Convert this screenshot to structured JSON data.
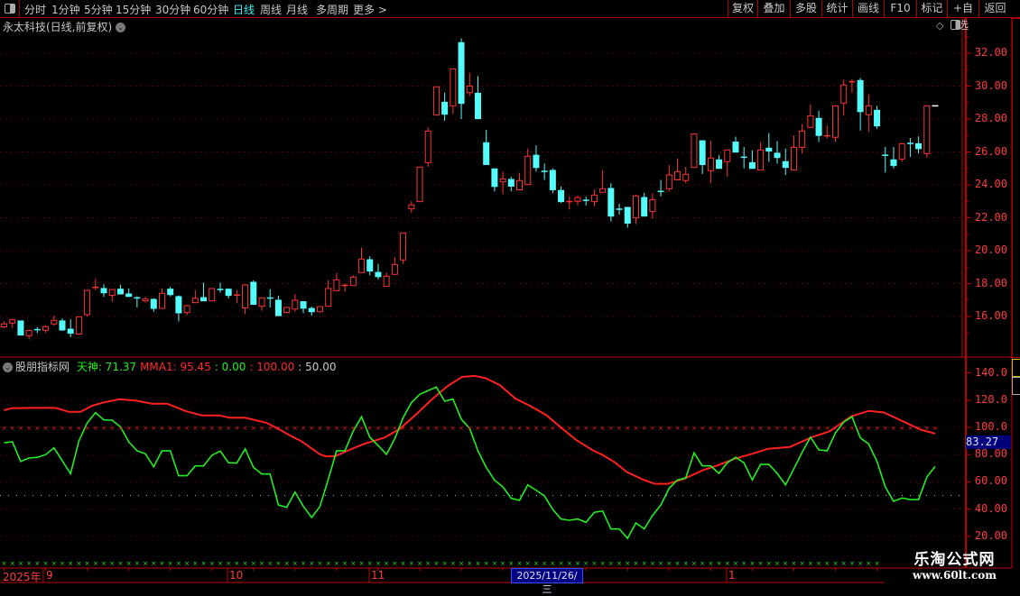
{
  "toolbar": {
    "periods": [
      {
        "label": "分时"
      },
      {
        "label": "1分钟"
      },
      {
        "label": "5分钟"
      },
      {
        "label": "15分钟"
      },
      {
        "label": "30分钟"
      },
      {
        "label": "60分钟"
      },
      {
        "label": "日线",
        "active": true
      },
      {
        "label": "周线"
      },
      {
        "label": "月线"
      },
      {
        "label": "多周期"
      },
      {
        "label": "更多 >"
      }
    ],
    "buttons": [
      {
        "label": "复权"
      },
      {
        "label": "叠加"
      },
      {
        "label": "多股"
      },
      {
        "label": "统计"
      },
      {
        "label": "画线"
      },
      {
        "label": "F10"
      },
      {
        "label": "标记"
      },
      {
        "label": "+自选"
      },
      {
        "label": "返回"
      }
    ]
  },
  "main_chart": {
    "title": "永太科技(日线,前复权)",
    "price_ticks": [
      "32.00",
      "30.00",
      "28.00",
      "26.00",
      "24.00",
      "22.00",
      "20.00",
      "18.00",
      "16.00"
    ]
  },
  "indicator": {
    "name": "股朋指标网",
    "legend": [
      {
        "text": "天神: 71.37",
        "color": "#22ee22"
      },
      {
        "text": "MMA1: 95.45",
        "color": "#ff2a2a"
      },
      {
        "text": ": 0.00",
        "color": "#22ee22"
      },
      {
        "text": ": 100.00",
        "color": "#ff2a2a"
      },
      {
        "text": ": 50.00",
        "color": "#c8c8c8"
      }
    ],
    "ticks": [
      "140.0",
      "120.0",
      "100.0",
      "80.00",
      "60.00",
      "40.00",
      "20.00"
    ],
    "current_value": "83.27"
  },
  "date_axis": {
    "year_label": "2025年",
    "month_labels": [
      "9",
      "10",
      "11",
      "1"
    ],
    "cursor_date": "2025/11/26/三"
  },
  "watermark": {
    "line1": "乐淘公式网",
    "line2": "www.60lt.com"
  },
  "colors": {
    "up": "#ff3232",
    "down": "#54fcfc",
    "last_bar": "#ffffff",
    "tianshen": "#22ee22",
    "mma1": "#ff2020",
    "grid": "#8a0000",
    "accent": "#3cf0f0"
  },
  "chart_data": [
    {
      "type": "candlestick",
      "title": "永太科技(日线,前复权)",
      "ylim": [
        14.5,
        33
      ],
      "yticks": [
        16,
        18,
        20,
        22,
        24,
        26,
        28,
        30,
        32
      ],
      "grid": true,
      "ohlc": [
        [
          15.37,
          15.7,
          15.3,
          15.55
        ],
        [
          15.6,
          15.85,
          15.3,
          15.8
        ],
        [
          15.73,
          15.73,
          14.87,
          14.87
        ],
        [
          14.84,
          15.16,
          14.6,
          15.16
        ],
        [
          15.2,
          15.35,
          15.0,
          15.15
        ],
        [
          15.16,
          15.45,
          15.0,
          15.38
        ],
        [
          15.55,
          16.05,
          15.45,
          15.77
        ],
        [
          15.73,
          15.88,
          15.13,
          15.18
        ],
        [
          15.23,
          15.84,
          14.74,
          14.98
        ],
        [
          14.93,
          15.98,
          14.93,
          15.98
        ],
        [
          16.11,
          17.59,
          16.0,
          17.59
        ],
        [
          17.72,
          18.3,
          17.6,
          17.77
        ],
        [
          17.7,
          17.95,
          17.2,
          17.44
        ],
        [
          17.28,
          17.66,
          16.9,
          17.64
        ],
        [
          17.66,
          17.93,
          17.37,
          17.37
        ],
        [
          17.37,
          17.7,
          17.18,
          17.22
        ],
        [
          17.13,
          17.22,
          16.55,
          17.11
        ],
        [
          16.95,
          17.2,
          16.84,
          17.06
        ],
        [
          17.04,
          17.1,
          16.28,
          16.49
        ],
        [
          16.49,
          17.7,
          16.49,
          17.41
        ],
        [
          17.66,
          17.8,
          17.22,
          17.33
        ],
        [
          17.21,
          17.28,
          15.7,
          16.22
        ],
        [
          16.24,
          16.71,
          16.07,
          16.66
        ],
        [
          16.84,
          17.6,
          16.84,
          17.1
        ],
        [
          17.15,
          18.06,
          16.95,
          16.95
        ],
        [
          16.95,
          17.7,
          16.95,
          17.7
        ],
        [
          17.64,
          18.06,
          17.44,
          17.62
        ],
        [
          17.66,
          17.7,
          17.1,
          17.28
        ],
        [
          17.28,
          17.6,
          16.8,
          17.3
        ],
        [
          16.52,
          17.92,
          16.14,
          17.92
        ],
        [
          18.08,
          18.2,
          16.7,
          16.74
        ],
        [
          16.62,
          17.13,
          16.35,
          17.13
        ],
        [
          17.12,
          17.66,
          16.55,
          17.1
        ],
        [
          16.99,
          17.26,
          16.05,
          16.05
        ],
        [
          16.24,
          16.55,
          16.2,
          16.55
        ],
        [
          16.45,
          17.37,
          16.29,
          16.99
        ],
        [
          16.9,
          16.92,
          16.2,
          16.5
        ],
        [
          16.49,
          16.6,
          16.05,
          16.29
        ],
        [
          16.29,
          16.6,
          16.25,
          16.6
        ],
        [
          16.62,
          18.2,
          16.62,
          17.7
        ],
        [
          17.57,
          18.63,
          17.57,
          18.23
        ],
        [
          17.87,
          18.0,
          17.5,
          17.89
        ],
        [
          17.88,
          18.5,
          17.88,
          18.39
        ],
        [
          18.67,
          20.17,
          18.67,
          19.49
        ],
        [
          19.45,
          19.66,
          18.5,
          18.76
        ],
        [
          18.68,
          19.2,
          18.25,
          18.42
        ],
        [
          17.83,
          18.67,
          17.83,
          18.45
        ],
        [
          18.56,
          19.6,
          18.56,
          19.16
        ],
        [
          19.44,
          21.08,
          19.2,
          21.08
        ],
        [
          22.54,
          23.0,
          22.3,
          22.78
        ],
        [
          22.98,
          25.08,
          22.98,
          25.08
        ],
        [
          25.35,
          27.5,
          25.1,
          27.27
        ],
        [
          28.24,
          29.96,
          28.24,
          29.96
        ],
        [
          29.02,
          29.6,
          27.9,
          28.29
        ],
        [
          28.8,
          31.05,
          28.3,
          31.05
        ],
        [
          32.64,
          32.9,
          28.0,
          28.95
        ],
        [
          29.6,
          30.8,
          29.4,
          30.0
        ],
        [
          29.57,
          30.6,
          28.02,
          28.02
        ],
        [
          26.56,
          27.34,
          25.23,
          25.23
        ],
        [
          24.97,
          24.97,
          23.6,
          23.9
        ],
        [
          24.18,
          24.8,
          23.43,
          24.36
        ],
        [
          24.33,
          24.48,
          23.6,
          23.92
        ],
        [
          23.7,
          24.73,
          23.7,
          24.26
        ],
        [
          24.02,
          26.2,
          24.02,
          25.74
        ],
        [
          25.8,
          26.4,
          24.8,
          25.05
        ],
        [
          24.82,
          25.3,
          24.3,
          24.79
        ],
        [
          24.88,
          25.0,
          23.5,
          23.7
        ],
        [
          23.66,
          23.9,
          22.9,
          22.98
        ],
        [
          22.96,
          23.28,
          22.5,
          22.98
        ],
        [
          23.0,
          23.34,
          22.75,
          23.23
        ],
        [
          23.06,
          23.28,
          22.75,
          23.04
        ],
        [
          22.98,
          23.72,
          22.7,
          23.38
        ],
        [
          23.55,
          24.88,
          23.55,
          23.76
        ],
        [
          23.78,
          24.1,
          21.77,
          22.1
        ],
        [
          22.52,
          22.85,
          22.2,
          22.5
        ],
        [
          22.63,
          22.63,
          21.4,
          21.67
        ],
        [
          21.99,
          23.4,
          21.62,
          23.33
        ],
        [
          23.23,
          23.5,
          22.1,
          22.1
        ],
        [
          22.38,
          23.5,
          21.94,
          23.1
        ],
        [
          23.6,
          24.3,
          23.3,
          23.58
        ],
        [
          23.76,
          25.2,
          23.6,
          24.6
        ],
        [
          24.3,
          25.6,
          24.3,
          24.8
        ],
        [
          24.26,
          25.1,
          24.1,
          24.64
        ],
        [
          25.06,
          27.1,
          25.06,
          27.1
        ],
        [
          26.68,
          26.7,
          24.66,
          25.23
        ],
        [
          24.86,
          26.7,
          24.1,
          25.63
        ],
        [
          25.52,
          25.8,
          25.0,
          25.0
        ],
        [
          25.41,
          26.12,
          24.5,
          26.12
        ],
        [
          26.6,
          26.93,
          25.99,
          25.99
        ],
        [
          25.68,
          26.3,
          25.0,
          25.66
        ],
        [
          25.35,
          26.1,
          25.0,
          25.0
        ],
        [
          24.9,
          26.6,
          24.9,
          26.12
        ],
        [
          26.23,
          27.15,
          25.4,
          26.05
        ],
        [
          25.92,
          26.66,
          25.28,
          25.66
        ],
        [
          25.41,
          26.2,
          24.6,
          25.06
        ],
        [
          24.9,
          27.0,
          24.9,
          26.28
        ],
        [
          26.28,
          27.7,
          25.9,
          27.27
        ],
        [
          27.49,
          28.9,
          27.49,
          28.2
        ],
        [
          28.04,
          28.5,
          26.6,
          27.0
        ],
        [
          26.96,
          27.6,
          26.8,
          26.98
        ],
        [
          26.89,
          28.8,
          26.6,
          28.8
        ],
        [
          28.97,
          30.4,
          28.2,
          30.07
        ],
        [
          30.25,
          30.4,
          29.6,
          30.27
        ],
        [
          30.34,
          30.5,
          27.3,
          28.45
        ],
        [
          28.26,
          29.5,
          27.2,
          28.8
        ],
        [
          28.53,
          28.8,
          27.4,
          27.58
        ],
        [
          25.8,
          26.3,
          24.75,
          25.78
        ],
        [
          25.52,
          26.3,
          25.0,
          25.17
        ],
        [
          25.57,
          26.55,
          25.4,
          26.5
        ],
        [
          26.52,
          26.85,
          25.7,
          26.5
        ],
        [
          26.5,
          26.95,
          25.9,
          26.2
        ],
        [
          25.9,
          28.8,
          25.65,
          28.8
        ],
        [
          28.8,
          28.8,
          28.8,
          28.8
        ]
      ]
    },
    {
      "type": "line",
      "ylim": [
        15,
        150
      ],
      "yticks": [
        20,
        40,
        60,
        80,
        100,
        120,
        140
      ],
      "reference_lines": [
        0,
        100,
        50
      ],
      "series": [
        {
          "name": "天神",
          "color": "#22ee22",
          "values": [
            88.7,
            89.4,
            75,
            77.5,
            78,
            80,
            85,
            75.5,
            66,
            90,
            103.3,
            110.8,
            105.5,
            105.3,
            100.4,
            89.4,
            82.8,
            80.6,
            71.1,
            82.8,
            82.8,
            64.5,
            64.5,
            71.7,
            71.7,
            79.5,
            82.6,
            74,
            73.8,
            84.3,
            70.6,
            65.8,
            65.8,
            43,
            41.3,
            52.5,
            42,
            33.8,
            42,
            61.9,
            82.8,
            82.8,
            97.2,
            107.8,
            92.8,
            86.6,
            80.2,
            91.7,
            107.1,
            118.1,
            124.3,
            127,
            129.6,
            119.2,
            120.8,
            106,
            99.3,
            82.8,
            70.6,
            61.2,
            56.3,
            47.9,
            46.4,
            57.8,
            53.8,
            49.7,
            39.7,
            32.7,
            31.8,
            32.7,
            30.3,
            37.6,
            38.6,
            25.4,
            25.4,
            18.5,
            29.8,
            25.4,
            35.3,
            43,
            55.2,
            61.4,
            62.9,
            81.3,
            71.7,
            71.7,
            66.2,
            74,
            78,
            74,
            61.4,
            72.8,
            72.8,
            66.2,
            57.8,
            69.5,
            81.7,
            92.8,
            83.5,
            82.8,
            96,
            103.8,
            107.8,
            92.3,
            87.8,
            75,
            56.3,
            45.7,
            48.1,
            47,
            47,
            63.6,
            71.37
          ]
        },
        {
          "name": "MMA1",
          "color": "#ff2020",
          "points": [
            [
              0,
              112.6
            ],
            [
              0.9,
              114.1
            ],
            [
              3.1,
              114.3
            ],
            [
              6.2,
              114.3
            ],
            [
              7.8,
              111.4
            ],
            [
              9.2,
              111.4
            ],
            [
              10.6,
              115.9
            ],
            [
              12.1,
              118.5
            ],
            [
              13.9,
              120.7
            ],
            [
              15.9,
              119.6
            ],
            [
              17.8,
              117.4
            ],
            [
              19.6,
              117.4
            ],
            [
              21.9,
              111.9
            ],
            [
              23.8,
              108.8
            ],
            [
              25.9,
              108.8
            ],
            [
              27.1,
              107.1
            ],
            [
              29,
              107.1
            ],
            [
              31.6,
              103.3
            ],
            [
              33.1,
              98.5
            ],
            [
              34.6,
              93.4
            ],
            [
              35.7,
              90.1
            ],
            [
              36.8,
              85.3
            ],
            [
              38,
              80.2
            ],
            [
              38.7,
              78.7
            ],
            [
              39.8,
              78.7
            ],
            [
              41.3,
              82.8
            ],
            [
              43.2,
              87.6
            ],
            [
              45.8,
              92.6
            ],
            [
              47.6,
              98.9
            ],
            [
              49.5,
              109.2
            ],
            [
              51.4,
              120.2
            ],
            [
              53.3,
              130.1
            ],
            [
              55.1,
              137.1
            ],
            [
              56.6,
              137.8
            ],
            [
              57.9,
              136.2
            ],
            [
              59.6,
              131.2
            ],
            [
              61.5,
              121.2
            ],
            [
              63.3,
              115.7
            ],
            [
              65.2,
              109.1
            ],
            [
              67.1,
              99.3
            ],
            [
              68.9,
              90.4
            ],
            [
              70.8,
              83.2
            ],
            [
              71.9,
              80.1
            ],
            [
              73.4,
              74.6
            ],
            [
              74.9,
              67.3
            ],
            [
              76.8,
              61.8
            ],
            [
              78.3,
              58.5
            ],
            [
              79.8,
              58.5
            ],
            [
              81.8,
              62.2
            ],
            [
              84,
              68.4
            ],
            [
              85.9,
              72.2
            ],
            [
              87.8,
              76.8
            ],
            [
              89.7,
              80.1
            ],
            [
              91.9,
              84.3
            ],
            [
              94.5,
              85.6
            ],
            [
              97.1,
              92.6
            ],
            [
              99.3,
              97.1
            ],
            [
              101.9,
              108.1
            ],
            [
              104,
              112.1
            ],
            [
              105.8,
              111
            ],
            [
              108.4,
              103.7
            ],
            [
              110.3,
              98.2
            ],
            [
              112,
              95.45
            ]
          ]
        }
      ]
    }
  ]
}
